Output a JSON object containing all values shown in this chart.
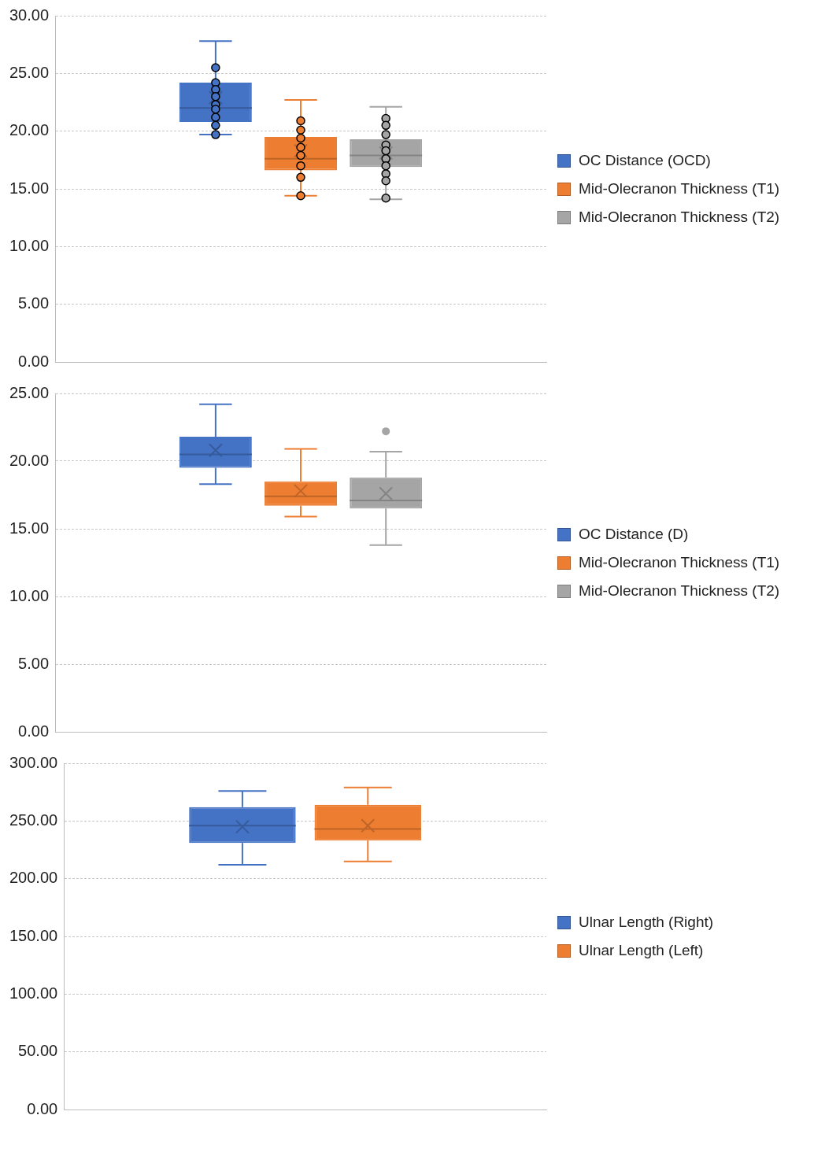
{
  "chart_data": [
    {
      "type": "box",
      "categories": [
        null
      ],
      "ylim": [
        0,
        30
      ],
      "yticks": [
        {
          "value": 0,
          "label": "0.00"
        },
        {
          "value": 5,
          "label": "5.00"
        },
        {
          "value": 10,
          "label": "10.00"
        },
        {
          "value": 15,
          "label": "15.00"
        },
        {
          "value": 20,
          "label": "20.00"
        },
        {
          "value": 25,
          "label": "25.00"
        },
        {
          "value": 30,
          "label": "30.00"
        }
      ],
      "grid": "y",
      "legend": "right",
      "series": [
        {
          "name": "OC Distance (OCD)",
          "color": "#4472c4",
          "boxes": [
            {
              "low": 19.7,
              "q1": 20.8,
              "median": 22.0,
              "q3": 24.2,
              "high": 27.8,
              "mean": 22.9
            }
          ]
        },
        {
          "name": "Mid-Olecranon Thickness (T1)",
          "color": "#ed7d31",
          "boxes": [
            {
              "low": 14.4,
              "q1": 16.6,
              "median": 17.6,
              "q3": 19.5,
              "high": 22.7,
              "mean": 18.3
            }
          ]
        },
        {
          "name": "Mid-Olecranon Thickness (T2)",
          "color": "#a5a5a5",
          "boxes": [
            {
              "low": 14.1,
              "q1": 16.9,
              "median": 17.9,
              "q3": 19.3,
              "high": 22.1,
              "mean": 18.1
            }
          ]
        },
        {
          "type": "scatter",
          "color": "#4472c4",
          "x": [
            null,
            null,
            null,
            null,
            null,
            null,
            null,
            null,
            null
          ],
          "values": [
            25.5,
            24.2,
            23.6,
            23.0,
            22.3,
            21.9,
            21.2,
            20.5,
            19.7
          ]
        },
        {
          "type": "scatter",
          "color": "#ed7d31",
          "x": [
            null,
            null,
            null,
            null,
            null,
            null,
            null,
            null
          ],
          "values": [
            20.9,
            20.1,
            19.4,
            18.6,
            17.9,
            17.0,
            16.0,
            14.4
          ]
        },
        {
          "type": "scatter",
          "color": "#a5a5a5",
          "x": [
            null,
            null,
            null,
            null,
            null,
            null,
            null,
            null,
            null,
            null
          ],
          "values": [
            21.1,
            20.5,
            19.7,
            18.8,
            18.3,
            17.6,
            17.0,
            16.3,
            15.7,
            14.2
          ]
        }
      ]
    },
    {
      "type": "box",
      "categories": [
        null
      ],
      "ylim": [
        0,
        25
      ],
      "yticks": [
        {
          "value": 0,
          "label": "0.00"
        },
        {
          "value": 5,
          "label": "5.00"
        },
        {
          "value": 10,
          "label": "10.00"
        },
        {
          "value": 15,
          "label": "15.00"
        },
        {
          "value": 20,
          "label": "20.00"
        },
        {
          "value": 25,
          "label": "25.00"
        }
      ],
      "grid": "y",
      "legend": "right",
      "series": [
        {
          "name": "OC Distance (D)",
          "color": "#4472c4",
          "boxes": [
            {
              "low": 18.3,
              "q1": 19.5,
              "median": 20.5,
              "q3": 21.8,
              "high": 24.2,
              "mean": 20.8
            }
          ]
        },
        {
          "name": "Mid-Olecranon Thickness (T1)",
          "color": "#ed7d31",
          "boxes": [
            {
              "low": 15.9,
              "q1": 16.7,
              "median": 17.4,
              "q3": 18.5,
              "high": 20.9,
              "mean": 17.8
            }
          ]
        },
        {
          "name": "Mid-Olecranon Thickness (T2)",
          "color": "#a5a5a5",
          "boxes": [
            {
              "low": 13.8,
              "q1": 16.5,
              "median": 17.1,
              "q3": 18.8,
              "high": 20.7,
              "mean": 17.6,
              "outliers": [
                22.2
              ]
            }
          ]
        }
      ]
    },
    {
      "type": "box",
      "categories": [
        null
      ],
      "ylim": [
        0,
        300
      ],
      "yticks": [
        {
          "value": 0,
          "label": "0.00"
        },
        {
          "value": 50,
          "label": "50.00"
        },
        {
          "value": 100,
          "label": "100.00"
        },
        {
          "value": 150,
          "label": "150.00"
        },
        {
          "value": 200,
          "label": "200.00"
        },
        {
          "value": 250,
          "label": "250.00"
        },
        {
          "value": 300,
          "label": "300.00"
        }
      ],
      "grid": "y",
      "legend": "right",
      "series": [
        {
          "name": "Ulnar Length (Right)",
          "color": "#4472c4",
          "boxes": [
            {
              "low": 212,
              "q1": 231,
              "median": 246,
              "q3": 262,
              "high": 276,
              "mean": 245
            }
          ]
        },
        {
          "name": "Ulnar Length (Left)",
          "color": "#ed7d31",
          "boxes": [
            {
              "low": 215,
              "q1": 233,
              "median": 243,
              "q3": 264,
              "high": 279,
              "mean": 246
            }
          ]
        }
      ]
    }
  ]
}
